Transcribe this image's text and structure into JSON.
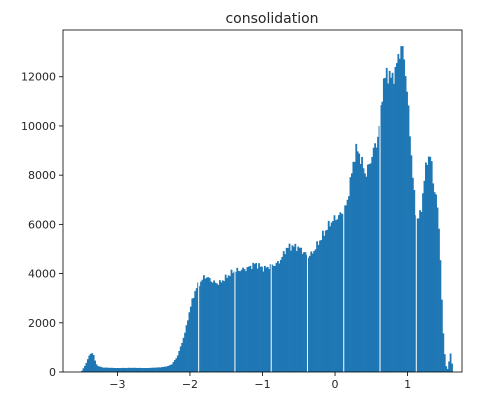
{
  "chart_data": {
    "type": "bar",
    "subtype": "histogram",
    "title": "consolidation",
    "xlabel": "",
    "ylabel": "",
    "xlim": [
      -3.75,
      1.75
    ],
    "ylim": [
      0,
      13900
    ],
    "xticks": [
      -3,
      -2,
      -1,
      0,
      1
    ],
    "xtick_labels": [
      "−3",
      "−2",
      "−1",
      "0",
      "1"
    ],
    "yticks": [
      0,
      2000,
      4000,
      6000,
      8000,
      10000,
      12000
    ],
    "ytick_labels": [
      "0",
      "2000",
      "4000",
      "6000",
      "8000",
      "10000",
      "12000"
    ],
    "grid": false,
    "legend": "none",
    "bar_color": "#1f77b4",
    "bin_width": 0.02,
    "outline": [
      [
        -3.5,
        0
      ],
      [
        -3.44,
        300
      ],
      [
        -3.4,
        600
      ],
      [
        -3.36,
        800
      ],
      [
        -3.33,
        700
      ],
      [
        -3.31,
        450
      ],
      [
        -3.28,
        250
      ],
      [
        -3.2,
        180
      ],
      [
        -3.0,
        160
      ],
      [
        -2.8,
        170
      ],
      [
        -2.6,
        160
      ],
      [
        -2.4,
        190
      ],
      [
        -2.3,
        240
      ],
      [
        -2.25,
        320
      ],
      [
        -2.18,
        600
      ],
      [
        -2.12,
        1100
      ],
      [
        -2.06,
        1700
      ],
      [
        -2.02,
        2300
      ],
      [
        -1.98,
        2800
      ],
      [
        -1.94,
        3200
      ],
      [
        -1.9,
        3500
      ],
      [
        -1.84,
        3700
      ],
      [
        -1.8,
        3900
      ],
      [
        -1.74,
        3800
      ],
      [
        -1.68,
        3650
      ],
      [
        -1.6,
        3600
      ],
      [
        -1.5,
        3850
      ],
      [
        -1.4,
        4100
      ],
      [
        -1.3,
        4150
      ],
      [
        -1.22,
        4200
      ],
      [
        -1.16,
        4300
      ],
      [
        -1.1,
        4400
      ],
      [
        -1.04,
        4300
      ],
      [
        -0.98,
        4200
      ],
      [
        -0.9,
        4300
      ],
      [
        -0.8,
        4400
      ],
      [
        -0.74,
        4600
      ],
      [
        -0.68,
        5000
      ],
      [
        -0.62,
        5100
      ],
      [
        -0.56,
        5100
      ],
      [
        -0.5,
        5050
      ],
      [
        -0.44,
        4900
      ],
      [
        -0.38,
        4700
      ],
      [
        -0.32,
        4800
      ],
      [
        -0.26,
        5100
      ],
      [
        -0.2,
        5400
      ],
      [
        -0.14,
        5700
      ],
      [
        -0.08,
        6000
      ],
      [
        -0.02,
        6200
      ],
      [
        0.04,
        6300
      ],
      [
        0.1,
        6500
      ],
      [
        0.16,
        6800
      ],
      [
        0.22,
        7900
      ],
      [
        0.26,
        8700
      ],
      [
        0.3,
        9100
      ],
      [
        0.36,
        8600
      ],
      [
        0.42,
        8000
      ],
      [
        0.48,
        8500
      ],
      [
        0.54,
        9100
      ],
      [
        0.6,
        9600
      ],
      [
        0.66,
        11700
      ],
      [
        0.72,
        12200
      ],
      [
        0.78,
        11900
      ],
      [
        0.84,
        12300
      ],
      [
        0.88,
        13000
      ],
      [
        0.92,
        13200
      ],
      [
        0.96,
        12600
      ],
      [
        1.0,
        11000
      ],
      [
        1.04,
        9300
      ],
      [
        1.08,
        7500
      ],
      [
        1.12,
        6200
      ],
      [
        1.18,
        6400
      ],
      [
        1.24,
        8100
      ],
      [
        1.28,
        8800
      ],
      [
        1.32,
        8700
      ],
      [
        1.36,
        7500
      ],
      [
        1.4,
        7000
      ],
      [
        1.44,
        5500
      ],
      [
        1.48,
        2000
      ],
      [
        1.52,
        300
      ],
      [
        1.56,
        60
      ],
      [
        1.58,
        800
      ],
      [
        1.6,
        700
      ],
      [
        1.62,
        0
      ]
    ]
  }
}
